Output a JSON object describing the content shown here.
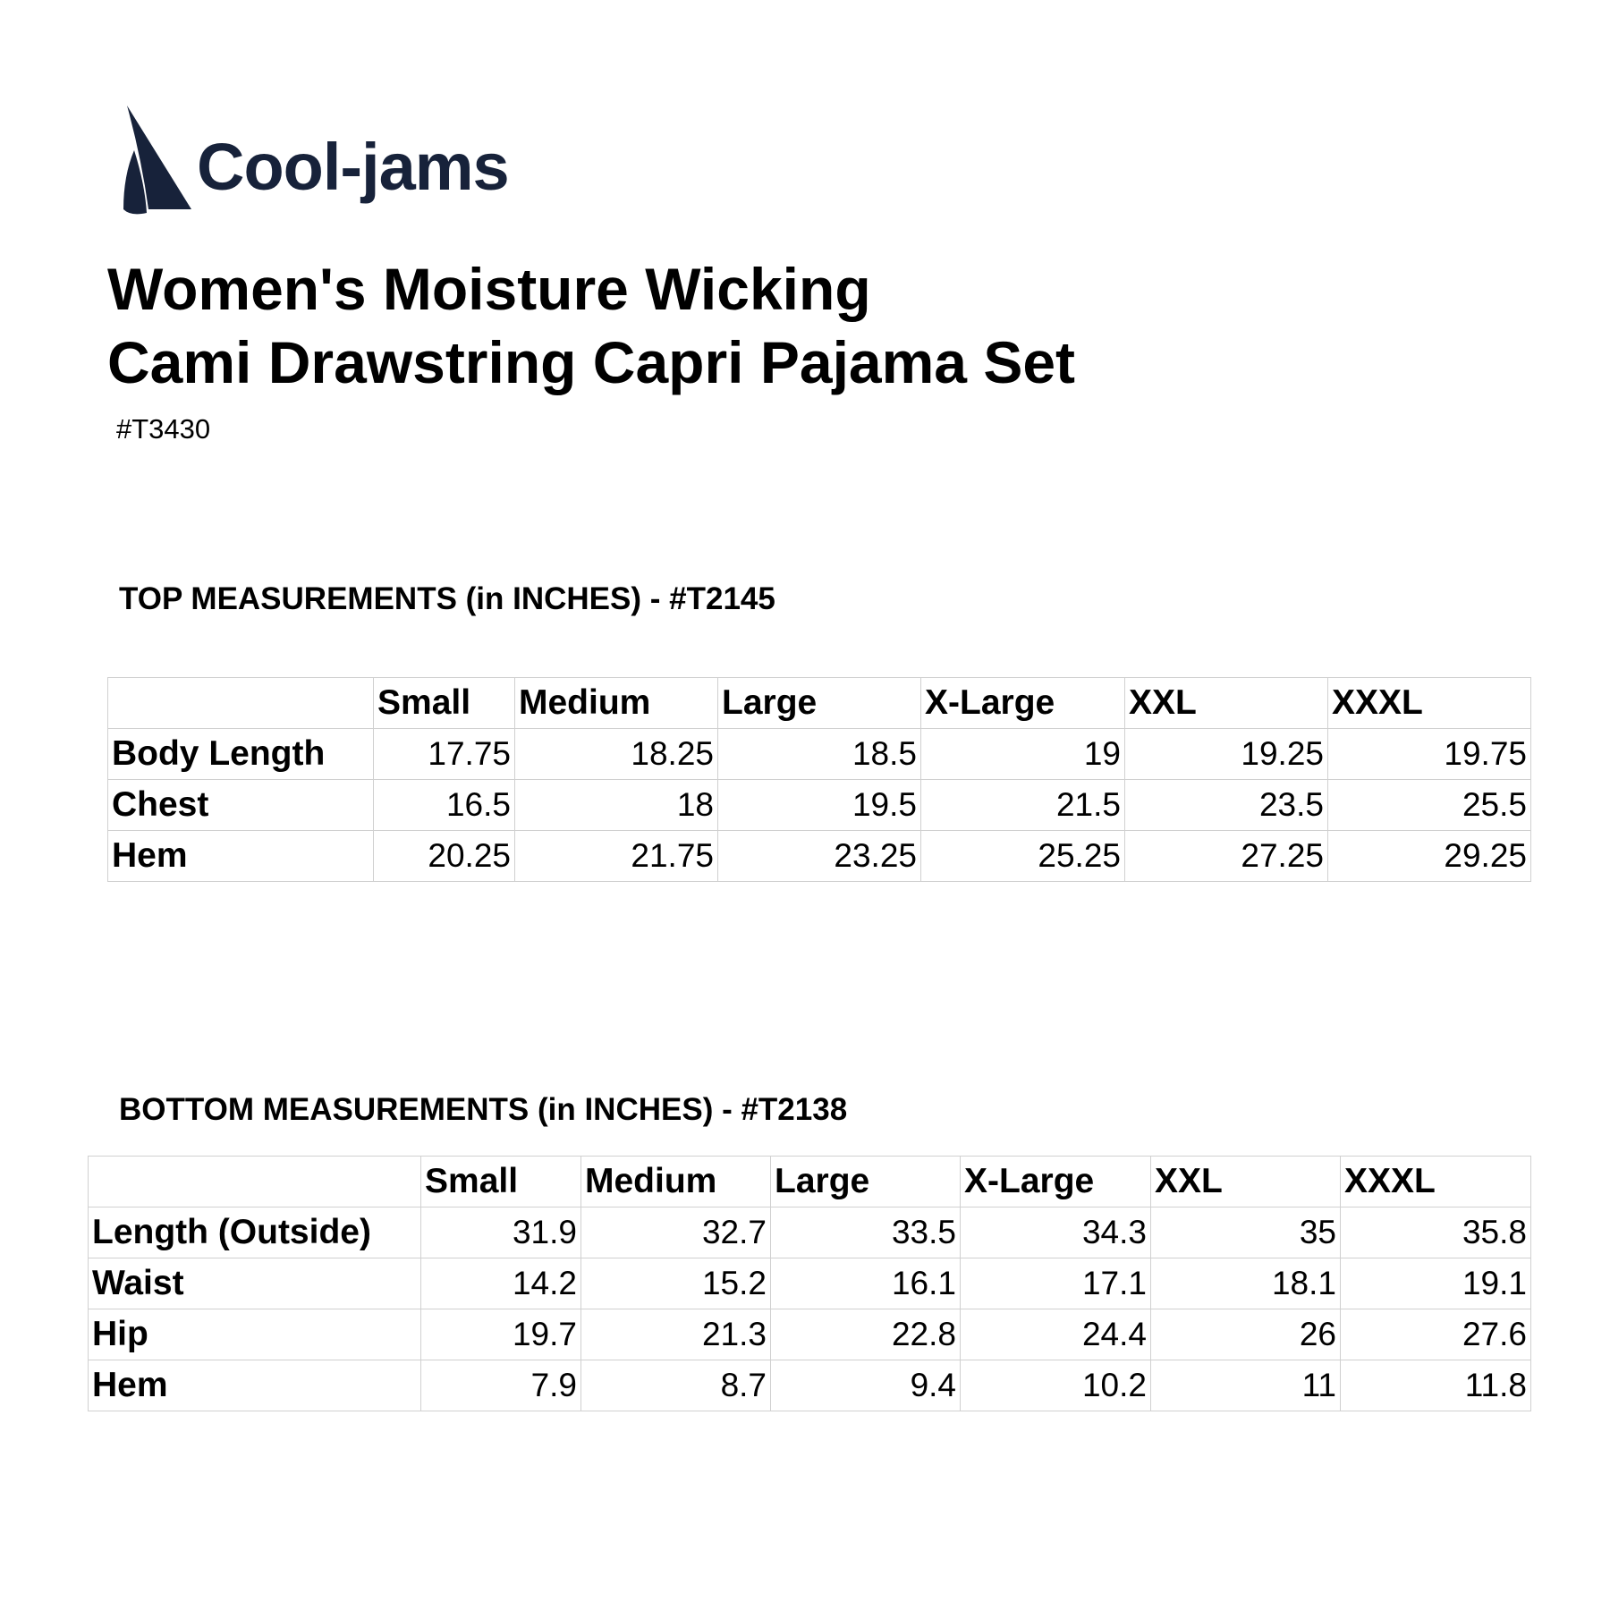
{
  "brand": {
    "name": "Cool-jams",
    "color": "#17223a"
  },
  "title": {
    "line1": "Women's Moisture Wicking",
    "line2": "Cami Drawstring Capri Pajama Set"
  },
  "sku": "#T3430",
  "top_table": {
    "heading": "TOP MEASUREMENTS (in INCHES) - #T2145",
    "columns": [
      "",
      "Small",
      "Medium",
      "Large",
      "X-Large",
      "XXL",
      "XXXL"
    ],
    "rows": [
      [
        "Body Length",
        "17.75",
        "18.25",
        "18.5",
        "19",
        "19.25",
        "19.75"
      ],
      [
        "Chest",
        "16.5",
        "18",
        "19.5",
        "21.5",
        "23.5",
        "25.5"
      ],
      [
        "Hem",
        "20.25",
        "21.75",
        "23.25",
        "25.25",
        "27.25",
        "29.25"
      ]
    ]
  },
  "bottom_table": {
    "heading": "BOTTOM MEASUREMENTS (in INCHES) - #T2138",
    "columns": [
      "",
      "Small",
      "Medium",
      "Large",
      "X-Large",
      "XXL",
      "XXXL"
    ],
    "rows": [
      [
        "Length (Outside)",
        "31.9",
        "32.7",
        "33.5",
        "34.3",
        "35",
        "35.8"
      ],
      [
        "Waist",
        "14.2",
        "15.2",
        "16.1",
        "17.1",
        "18.1",
        "19.1"
      ],
      [
        "Hip",
        "19.7",
        "21.3",
        "22.8",
        "24.4",
        "26",
        "27.6"
      ],
      [
        "Hem",
        "7.9",
        "8.7",
        "9.4",
        "10.2",
        "11",
        "11.8"
      ]
    ]
  }
}
